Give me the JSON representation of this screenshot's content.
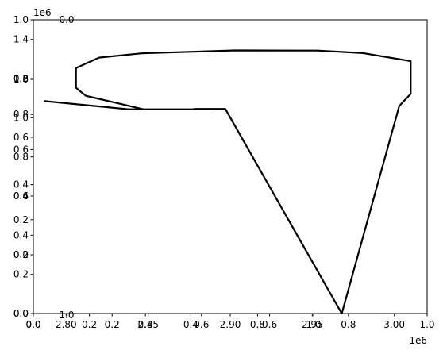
{
  "chart_data": {
    "type": "line",
    "title": "",
    "xlabel": "",
    "ylabel": "",
    "grid": false,
    "xlim": [
      2780000,
      3020000
    ],
    "ylim": [
      0,
      1500000
    ],
    "x_ticks": [
      2800000,
      2850000,
      2900000,
      2950000,
      3000000
    ],
    "x_tick_labels": [
      "2.80",
      "2.85",
      "2.90",
      "2.95",
      "3.00"
    ],
    "y_ticks": [
      0,
      200000,
      400000,
      600000,
      800000,
      1000000,
      1200000,
      1400000
    ],
    "y_tick_labels": [
      "0.0",
      "0.2",
      "0.4",
      "0.6",
      "0.8",
      "1.0",
      "1.2",
      "1.4"
    ],
    "x_offset_label": "1e6",
    "y_offset_label": "1e6",
    "overlay_axes": [
      {
        "x_tick_labels": [
          "0.0",
          "0.2",
          "0.4",
          "0.6",
          "0.8",
          "1.0"
        ],
        "y_tick_labels": [
          "0.0",
          "0.2",
          "0.4",
          "0.6",
          "0.8",
          "1.0"
        ]
      },
      {
        "x_tick_labels": [
          "0.0",
          "0.2",
          "0.4",
          "0.6",
          "0.8",
          "1.0"
        ],
        "y_tick_labels": [
          "0.0",
          "0.2",
          "0.4",
          "0.6",
          "0.8",
          "1.0"
        ]
      }
    ],
    "stray_labels": [
      "0.0",
      "1.0"
    ],
    "series": [
      {
        "color": "#000000",
        "points": [
          [
            2787000,
            1085000
          ],
          [
            2838000,
            1043000
          ],
          [
            2877000,
            1043000
          ],
          [
            2888000,
            1043000
          ],
          [
            2847000,
            1043000
          ],
          [
            2832000,
            1073000
          ],
          [
            2812000,
            1112000
          ],
          [
            2806000,
            1153000
          ],
          [
            2806000,
            1254000
          ],
          [
            2820000,
            1307000
          ],
          [
            2846000,
            1329000
          ],
          [
            2903000,
            1344000
          ],
          [
            2953000,
            1343000
          ],
          [
            2981000,
            1330000
          ],
          [
            3010000,
            1289000
          ],
          [
            3010000,
            1122000
          ],
          [
            3003000,
            1060000
          ],
          [
            2968000,
            0
          ],
          [
            2897000,
            1045000
          ],
          [
            2878000,
            1045000
          ]
        ]
      }
    ]
  }
}
